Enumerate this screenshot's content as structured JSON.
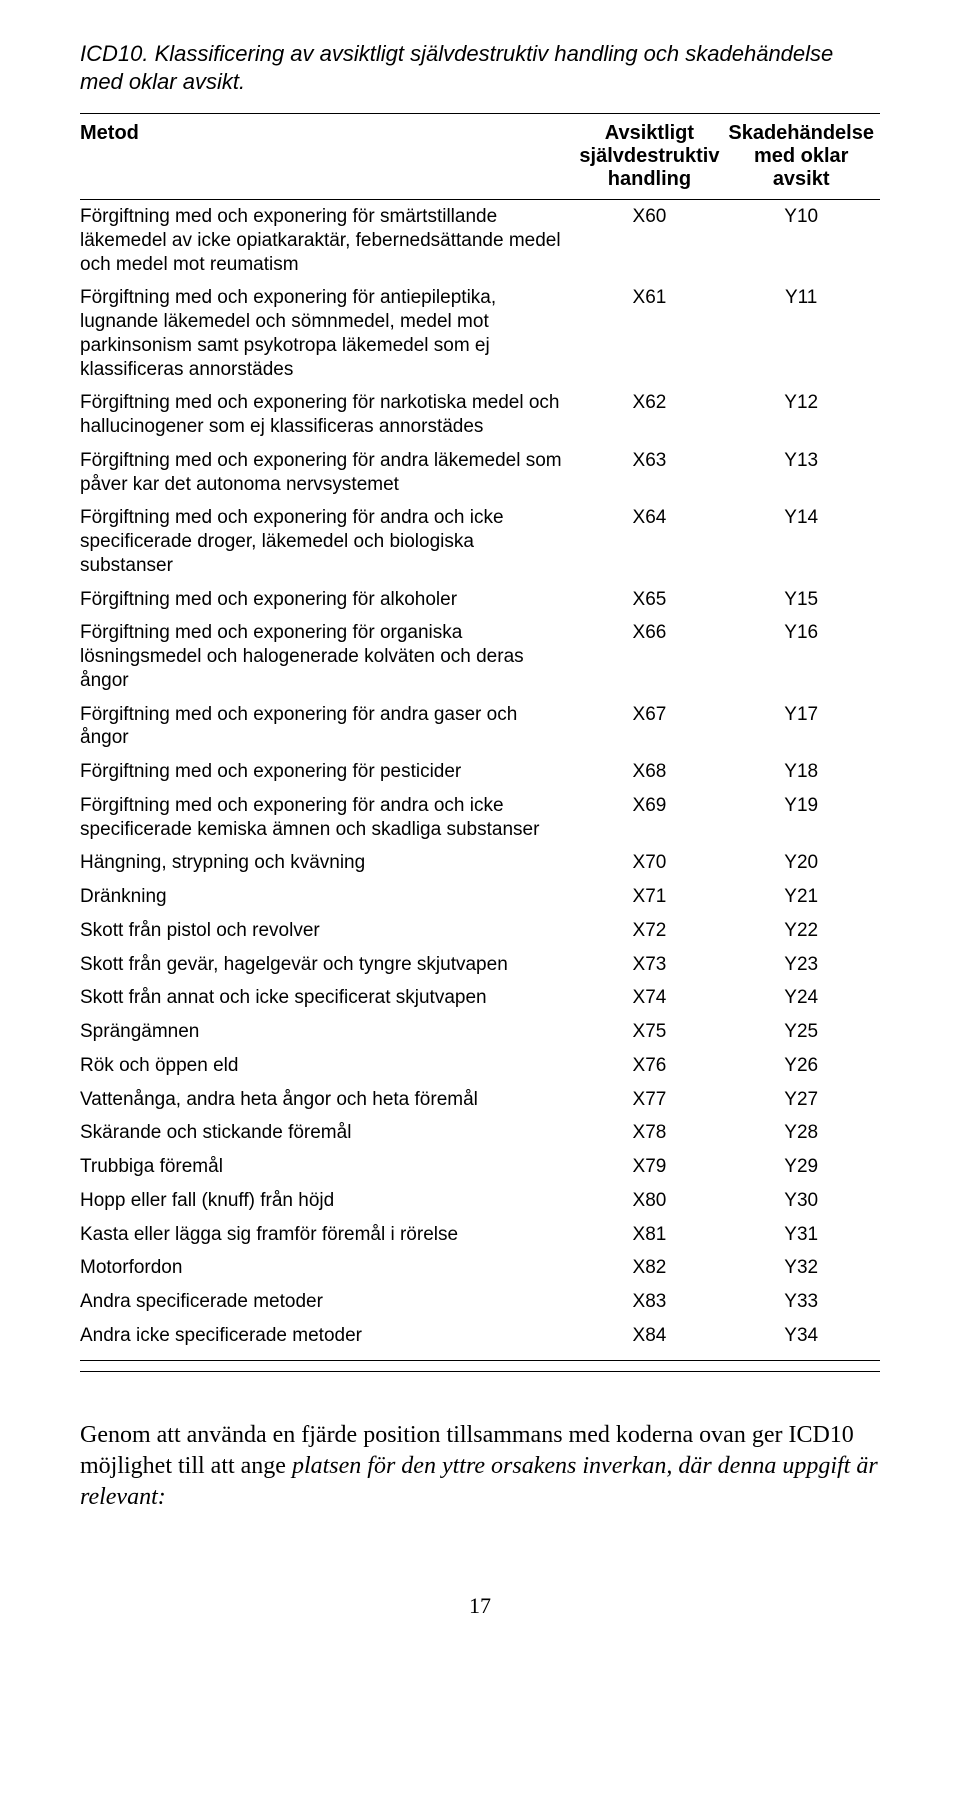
{
  "title": "ICD10. Klassificering av avsiktligt självdestruktiv handling och skadehändelse med oklar avsikt.",
  "headers": {
    "metod": "Metod",
    "col_a": "Avsiktligt självdestruktiv handling",
    "col_b": "Skadehändelse med oklar avsikt"
  },
  "rows": [
    {
      "metod": "Förgiftning med och exponering för smärtstillande läkemedel av icke opiatkaraktär, febernedsättande medel och medel mot reumatism",
      "a": "X60",
      "b": "Y10"
    },
    {
      "metod": "Förgiftning med och exponering för antiepileptika, lugnande läkemedel och sömnmedel, medel mot parkinsonism samt psykotropa läkemedel som ej klassificeras annorstädes",
      "a": "X61",
      "b": "Y11"
    },
    {
      "metod": "Förgiftning med och exponering för narkotiska medel och hallucinogener som ej klassificeras annorstädes",
      "a": "X62",
      "b": "Y12"
    },
    {
      "metod": "Förgiftning med och exponering för andra läkemedel som påver kar det autonoma nervsystemet",
      "a": "X63",
      "b": "Y13"
    },
    {
      "metod": "Förgiftning med och exponering för andra och icke specificerade droger, läkemedel och biologiska substanser",
      "a": "X64",
      "b": "Y14"
    },
    {
      "metod": "Förgiftning med och exponering för alkoholer",
      "a": "X65",
      "b": "Y15"
    },
    {
      "metod": "Förgiftning med och exponering för organiska lösningsmedel och halogenerade kolväten och deras ångor",
      "a": "X66",
      "b": "Y16"
    },
    {
      "metod": "Förgiftning med och exponering för andra gaser och ångor",
      "a": "X67",
      "b": "Y17"
    },
    {
      "metod": "Förgiftning med och exponering för pesticider",
      "a": "X68",
      "b": "Y18"
    },
    {
      "metod": "Förgiftning med och exponering för andra och icke specificerade kemiska ämnen och skadliga substanser",
      "a": "X69",
      "b": "Y19"
    },
    {
      "metod": "Hängning, strypning och kvävning",
      "a": "X70",
      "b": "Y20"
    },
    {
      "metod": "Dränkning",
      "a": "X71",
      "b": "Y21"
    },
    {
      "metod": "Skott från pistol och revolver",
      "a": "X72",
      "b": "Y22"
    },
    {
      "metod": "Skott från gevär, hagelgevär och tyngre skjutvapen",
      "a": "X73",
      "b": "Y23"
    },
    {
      "metod": "Skott från annat och icke specificerat skjutvapen",
      "a": "X74",
      "b": "Y24"
    },
    {
      "metod": "Sprängämnen",
      "a": "X75",
      "b": "Y25"
    },
    {
      "metod": "Rök och öppen eld",
      "a": "X76",
      "b": "Y26"
    },
    {
      "metod": "Vattenånga, andra heta ångor och heta föremål",
      "a": "X77",
      "b": "Y27"
    },
    {
      "metod": "Skärande och stickande föremål",
      "a": "X78",
      "b": "Y28"
    },
    {
      "metod": "Trubbiga föremål",
      "a": "X79",
      "b": "Y29"
    },
    {
      "metod": "Hopp eller fall (knuff) från höjd",
      "a": "X80",
      "b": "Y30"
    },
    {
      "metod": "Kasta eller lägga sig framför föremål i rörelse",
      "a": "X81",
      "b": "Y31"
    },
    {
      "metod": "Motorfordon",
      "a": "X82",
      "b": "Y32"
    },
    {
      "metod": "Andra specificerade metoder",
      "a": "X83",
      "b": "Y33"
    },
    {
      "metod": "Andra icke specificerade metoder",
      "a": "X84",
      "b": "Y34"
    }
  ],
  "paragraph": {
    "plain1": "Genom att använda en fjärde position tillsammans med koderna ovan ger ICD10 möjlighet till att ange ",
    "italic": "platsen för den yttre orsakens inverkan, där denna uppgift är relevant:"
  },
  "page_number": "17"
}
